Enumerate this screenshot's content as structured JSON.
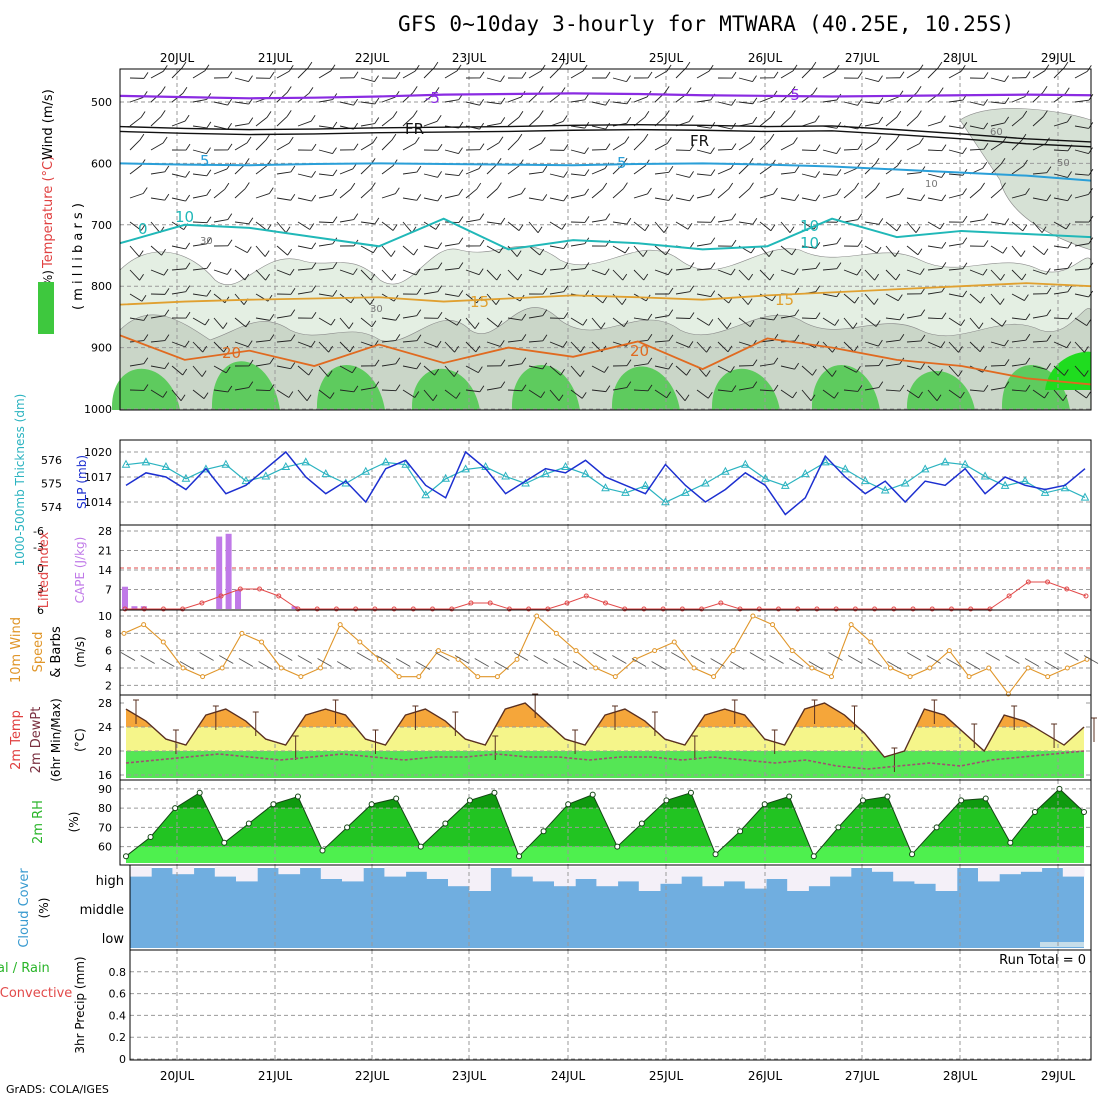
{
  "title": "GFS 0~10day 3-hourly for MTWARA (40.25E, 10.25S)",
  "credit": "GrADS: COLA/IGES",
  "chart_data": [
    {
      "type": "contour",
      "panel": "upper-air",
      "axis_label_left": [
        "RH (%)",
        "Temperature (°C)",
        "Wind (m/s)"
      ],
      "axis_label_inner": "( m i l l i b a r s )",
      "y_ticks": [
        500,
        600,
        700,
        800,
        900,
        1000
      ],
      "x_ticks": [
        "20JUL",
        "21JUL",
        "22JUL",
        "23JUL",
        "24JUL",
        "25JUL",
        "26JUL",
        "27JUL",
        "28JUL",
        "29JUL"
      ],
      "contour_labels": [
        "-5",
        "-5",
        "FR",
        "FR",
        "-5",
        "5",
        "5",
        "0",
        "10",
        "10",
        "10",
        "15",
        "15",
        "20",
        "20",
        "30",
        "30",
        "10",
        "50",
        "60"
      ],
      "temperature_isotherms_hPa": {
        "minus5": [
          490,
          492,
          494,
          493,
          491,
          488,
          487,
          486,
          487,
          489,
          490,
          491,
          490,
          489,
          488,
          489
        ],
        "freezing": [
          540,
          543,
          545,
          544,
          542,
          541,
          540,
          538,
          537,
          538,
          540,
          539,
          545,
          552,
          560,
          565
        ],
        "plus5": [
          600,
          602,
          603,
          601,
          600,
          601,
          602,
          603,
          601,
          600,
          602,
          605,
          610,
          615,
          620,
          628
        ],
        "plus10": [
          730,
          700,
          705,
          720,
          735,
          690,
          740,
          725,
          730,
          740,
          735,
          690,
          720,
          710,
          715,
          720
        ],
        "plus15": [
          830,
          825,
          822,
          820,
          818,
          825,
          820,
          815,
          818,
          822,
          815,
          810,
          805,
          800,
          795,
          800
        ],
        "plus20": [
          880,
          920,
          905,
          930,
          895,
          925,
          900,
          915,
          890,
          935,
          885,
          900,
          920,
          930,
          950,
          960
        ]
      }
    },
    {
      "type": "line",
      "panel": "thickness-slp",
      "axis_label_left": "1000-500mb Thickness (dm)",
      "axis_label_right": "SLP (mb)",
      "y_ticks_left": [
        574,
        575,
        576
      ],
      "y_ticks_right": [
        1014,
        1017,
        1020
      ],
      "series": [
        {
          "name": "SLP (mb)",
          "color": "#1c2fd0",
          "values": [
            1016,
            1017.5,
            1017,
            1015.5,
            1018,
            1015,
            1016,
            1018,
            1020,
            1017,
            1015,
            1016.5,
            1014,
            1018,
            1019,
            1016,
            1014.5,
            1020,
            1018,
            1015,
            1016.5,
            1018,
            1017.5,
            1019,
            1017,
            1016,
            1015,
            1018.5,
            1016,
            1014,
            1015.5,
            1017.5,
            1016,
            1012.5,
            1014.5,
            1019.5,
            1017,
            1015,
            1016.5,
            1014,
            1016.5,
            1016,
            1018,
            1015,
            1017,
            1016,
            1015.5,
            1016,
            1018
          ]
        },
        {
          "name": "1000-500mb Thickness (dm)",
          "color": "#2bb3c0",
          "values": [
            575.8,
            575.9,
            575.7,
            575.2,
            575.6,
            575.8,
            575.1,
            575.3,
            575.7,
            575.9,
            575.4,
            575.0,
            575.5,
            575.9,
            575.8,
            574.5,
            575.2,
            575.6,
            575.7,
            575.3,
            575.0,
            575.4,
            575.7,
            575.4,
            574.8,
            574.6,
            574.9,
            574.2,
            574.6,
            575.0,
            575.5,
            575.8,
            575.2,
            574.9,
            575.4,
            575.9,
            575.6,
            575.1,
            574.7,
            575.0,
            575.6,
            575.9,
            575.8,
            575.3,
            574.9,
            575.1,
            574.6,
            574.8,
            574.4
          ]
        }
      ]
    },
    {
      "type": "bar",
      "panel": "cape-lifted-index",
      "axis_label_left": "Lifted Index",
      "axis_label_right": "CAPE (J/kg)",
      "y_ticks_left": [
        "6",
        "3",
        "0",
        "-3",
        "-6"
      ],
      "y_ticks_right": [
        7,
        14,
        21,
        28
      ],
      "series": [
        {
          "name": "CAPE (J/kg)",
          "color": "#c07ae8",
          "values": [
            8,
            1,
            1,
            0,
            0,
            0,
            0,
            0,
            0,
            0,
            26,
            27,
            7,
            0,
            0,
            0,
            0,
            0,
            1,
            0,
            0,
            0,
            0,
            0,
            0,
            0,
            0,
            0,
            0,
            0,
            0,
            0,
            0,
            0,
            0,
            0,
            0,
            0,
            0,
            0,
            0,
            0,
            0,
            0,
            0,
            0,
            0,
            0,
            0,
            0,
            0,
            0,
            0,
            0,
            0,
            0,
            0,
            0,
            0,
            0,
            0,
            0,
            0,
            0,
            0,
            0,
            0,
            0,
            0,
            0,
            0,
            0,
            0,
            0,
            0,
            0,
            0,
            0,
            0,
            0,
            0,
            0,
            0,
            0,
            0,
            0,
            0,
            0,
            0,
            0,
            0,
            0,
            0,
            0,
            0,
            0,
            0,
            0,
            0,
            0
          ]
        },
        {
          "name": "Lifted Index",
          "color": "#e24a4a",
          "values": [
            6,
            6,
            6,
            6,
            5,
            4,
            3,
            3,
            4,
            6,
            6,
            6,
            6,
            6,
            6,
            6,
            6,
            6,
            5,
            5,
            6,
            6,
            6,
            5,
            4,
            5,
            6,
            6,
            6,
            6,
            6,
            5,
            6,
            6,
            6,
            6,
            6,
            6,
            6,
            6,
            6,
            6,
            6,
            6,
            6,
            6,
            4,
            2,
            2,
            3,
            4
          ]
        }
      ]
    },
    {
      "type": "line",
      "panel": "wind-speed",
      "axis_label_left": [
        "10m Wind",
        "Speed",
        "& Barbs"
      ],
      "axis_unit": "(m/s)",
      "y_ticks": [
        2,
        4,
        6,
        8,
        10
      ],
      "series": [
        {
          "name": "10m wind speed",
          "color": "#e0962a",
          "values": [
            8,
            9,
            7,
            4,
            3,
            4,
            8,
            7,
            4,
            3,
            4,
            9,
            7,
            5,
            3,
            3,
            6,
            5,
            3,
            3,
            5,
            10,
            8,
            6,
            4,
            3,
            5,
            6,
            7,
            4,
            3,
            6,
            10,
            9,
            6,
            4,
            3,
            9,
            7,
            4,
            3,
            4,
            6,
            3,
            4,
            1,
            4,
            3,
            4,
            5
          ]
        }
      ]
    },
    {
      "type": "area",
      "panel": "temp-dewpt",
      "axis_label_left": [
        "2m Temp",
        "2m DewPt",
        "(6hr Min/Max)"
      ],
      "axis_unit": "(°C)",
      "y_ticks": [
        16,
        20,
        24,
        28
      ],
      "series": [
        {
          "name": "2m Temp",
          "color": "#e89a30",
          "values": [
            27,
            25,
            22,
            21,
            26,
            27,
            25,
            22,
            21,
            26,
            27,
            26,
            22,
            21,
            26,
            27,
            25,
            22,
            21,
            27,
            28,
            25,
            22,
            21,
            26,
            27,
            25,
            22,
            21,
            26,
            27,
            26,
            22,
            21,
            27,
            28,
            26,
            23,
            19,
            20,
            27,
            26,
            23,
            20,
            26,
            25,
            23,
            21,
            24
          ]
        },
        {
          "name": "2m DewPt",
          "color": "#a05070",
          "values": [
            18,
            18.5,
            19,
            19.5,
            19,
            18.5,
            19,
            19.5,
            19,
            18.5,
            19,
            19,
            19.5,
            19,
            19,
            18.5,
            19,
            19,
            18.5,
            19,
            18.5,
            18,
            18.5,
            17.5,
            17,
            17.5,
            18,
            17.5,
            18.5,
            19,
            19.5,
            20
          ]
        }
      ]
    },
    {
      "type": "area",
      "panel": "rh",
      "axis_label_left": "2m RH",
      "axis_unit": "(%)",
      "y_ticks": [
        60,
        70,
        80,
        90
      ],
      "series": [
        {
          "name": "2m RH",
          "color": "#2ab52a",
          "values": [
            55,
            65,
            80,
            88,
            62,
            72,
            82,
            86,
            58,
            70,
            82,
            85,
            60,
            72,
            84,
            88,
            55,
            68,
            82,
            87,
            60,
            72,
            84,
            88,
            56,
            68,
            82,
            86,
            55,
            70,
            84,
            86,
            56,
            70,
            84,
            85,
            62,
            78,
            90,
            78
          ]
        }
      ]
    },
    {
      "type": "area",
      "panel": "cloud-cover",
      "axis_label_left": "Cloud Cover",
      "axis_unit": "(%)",
      "layer_labels": [
        "high",
        "middle",
        "low"
      ],
      "series": [
        {
          "name": "high",
          "color": "#70aee0",
          "values": [
            60,
            100,
            70,
            100,
            60,
            40,
            100,
            70,
            100,
            50,
            40,
            100,
            60,
            80,
            50,
            20,
            0,
            100,
            60,
            40,
            20,
            50,
            20,
            40,
            0,
            30,
            60,
            20,
            40,
            10,
            50,
            0,
            20,
            60,
            100,
            80,
            40,
            30,
            0,
            100,
            40,
            70,
            80,
            100,
            60
          ]
        },
        {
          "name": "middle",
          "color": "#70aee0",
          "values": [
            100,
            100,
            100,
            100,
            100,
            100,
            100,
            100,
            100,
            100,
            100
          ]
        },
        {
          "name": "low",
          "color": "#70aee0",
          "values": [
            100,
            100,
            100,
            100,
            100,
            100,
            100,
            100,
            100,
            100,
            100
          ]
        }
      ]
    },
    {
      "type": "bar",
      "panel": "precip",
      "axis_label_left": [
        "Total / Rain",
        "Convective"
      ],
      "axis_unit": "3hr Precip (mm)",
      "y_ticks": [
        0,
        0.2,
        0.4,
        0.6,
        0.8
      ],
      "run_total_label": "Run Total = 0",
      "x_ticks": [
        "20JUL",
        "21JUL",
        "22JUL",
        "23JUL",
        "24JUL",
        "25JUL",
        "26JUL",
        "27JUL",
        "28JUL",
        "29JUL"
      ],
      "series": [
        {
          "name": "Total / Rain",
          "color": "#2ab52a",
          "values": [
            0,
            0,
            0,
            0,
            0,
            0,
            0,
            0,
            0,
            0
          ]
        },
        {
          "name": "Convective",
          "color": "#e24a4a",
          "values": [
            0,
            0,
            0,
            0,
            0,
            0,
            0,
            0,
            0,
            0
          ]
        }
      ]
    }
  ]
}
